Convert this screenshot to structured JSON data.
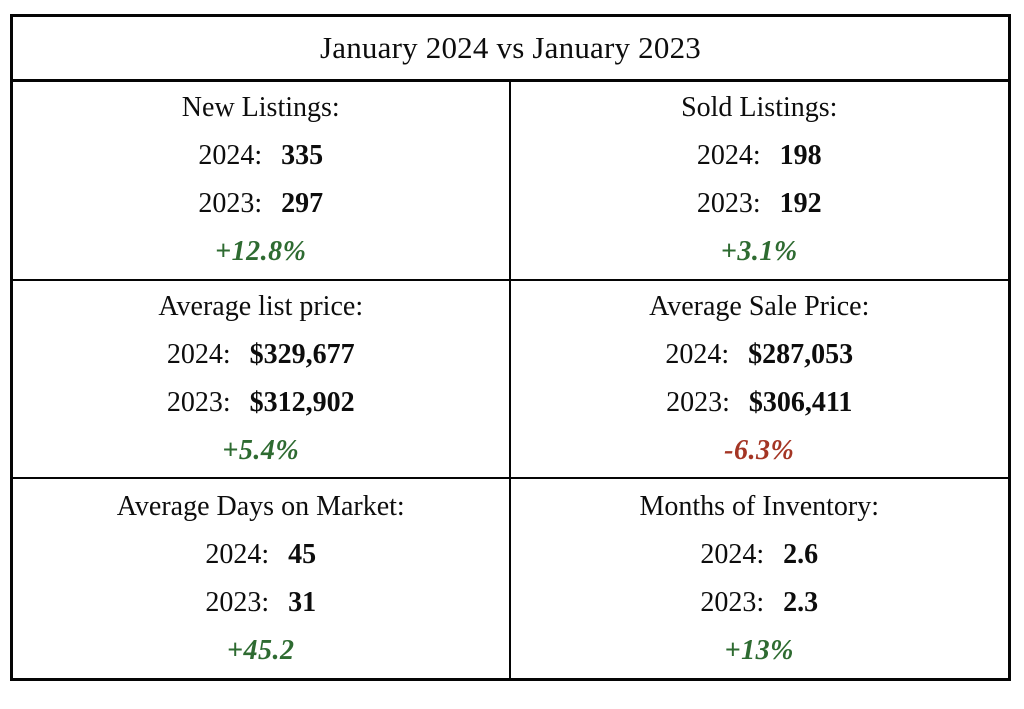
{
  "title": "January 2024 vs January 2023",
  "colors": {
    "positive": "#2E6B31",
    "negative": "#A43524",
    "border": "#050505",
    "text": "#0d0d0d"
  },
  "year_labels": {
    "y2024": "2024:",
    "y2023": "2023:"
  },
  "cells": [
    {
      "label": "New Listings:",
      "y2024": "335",
      "y2023": "297",
      "change": "+12.8%",
      "direction": "positive"
    },
    {
      "label": "Sold Listings:",
      "y2024": "198",
      "y2023": "192",
      "change": "+3.1%",
      "direction": "positive"
    },
    {
      "label": "Average list price:",
      "y2024": "$329,677",
      "y2023": "$312,902",
      "change": "+5.4%",
      "direction": "positive"
    },
    {
      "label": "Average Sale Price:",
      "y2024": "$287,053",
      "y2023": "$306,411",
      "change": "-6.3%",
      "direction": "negative"
    },
    {
      "label": "Average Days on Market:",
      "y2024": "45",
      "y2023": "31",
      "change": "+45.2",
      "direction": "positive"
    },
    {
      "label": "Months of Inventory:",
      "y2024": "2.6",
      "y2023": "2.3",
      "change": "+13%",
      "direction": "positive"
    }
  ]
}
